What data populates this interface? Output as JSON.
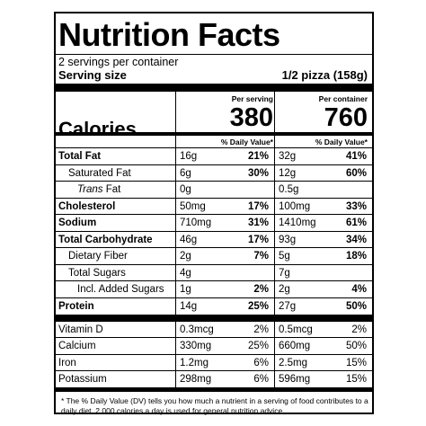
{
  "label": {
    "title": "Nutrition Facts",
    "servings_per_container": "2 servings per container",
    "serving_size_label": "Serving size",
    "serving_size_value": "1/2 pizza (158g)",
    "per_serving_label": "Per serving",
    "per_container_label": "Per container",
    "calories_label": "Calories",
    "calories_per_serving": "380",
    "calories_per_container": "760",
    "daily_value_header": "% Daily Value*",
    "nutrients": [
      {
        "name": "Total Fat",
        "serv_amt": "16g",
        "serv_dv": "21%",
        "cont_amt": "32g",
        "cont_dv": "41%"
      },
      {
        "name": "Saturated Fat",
        "serv_amt": "6g",
        "serv_dv": "30%",
        "cont_amt": "12g",
        "cont_dv": "60%"
      },
      {
        "name_italic": "Trans",
        "name_rest": " Fat",
        "serv_amt": "0g",
        "serv_dv": "",
        "cont_amt": "0.5g",
        "cont_dv": ""
      },
      {
        "name": "Cholesterol",
        "serv_amt": "50mg",
        "serv_dv": "17%",
        "cont_amt": "100mg",
        "cont_dv": "33%"
      },
      {
        "name": "Sodium",
        "serv_amt": "710mg",
        "serv_dv": "31%",
        "cont_amt": "1410mg",
        "cont_dv": "61%"
      },
      {
        "name": "Total Carbohydrate",
        "serv_amt": "46g",
        "serv_dv": "17%",
        "cont_amt": "93g",
        "cont_dv": "34%"
      },
      {
        "name": "Dietary Fiber",
        "serv_amt": "2g",
        "serv_dv": "7%",
        "cont_amt": "5g",
        "cont_dv": "18%"
      },
      {
        "name": "Total Sugars",
        "serv_amt": "4g",
        "serv_dv": "",
        "cont_amt": "7g",
        "cont_dv": ""
      },
      {
        "name": "Incl. Added Sugars",
        "serv_amt": "1g",
        "serv_dv": "2%",
        "cont_amt": "2g",
        "cont_dv": "4%"
      },
      {
        "name": "Protein",
        "serv_amt": "14g",
        "serv_dv": "25%",
        "cont_amt": "27g",
        "cont_dv": "50%"
      }
    ],
    "vitamins": [
      {
        "name": "Vitamin D",
        "serv_amt": "0.3mcg",
        "serv_dv": "2%",
        "cont_amt": "0.5mcg",
        "cont_dv": "2%"
      },
      {
        "name": "Calcium",
        "serv_amt": "330mg",
        "serv_dv": "25%",
        "cont_amt": "660mg",
        "cont_dv": "50%"
      },
      {
        "name": "Iron",
        "serv_amt": "1.2mg",
        "serv_dv": "6%",
        "cont_amt": "2.5mg",
        "cont_dv": "15%"
      },
      {
        "name": "Potassium",
        "serv_amt": "298mg",
        "serv_dv": "6%",
        "cont_amt": "596mg",
        "cont_dv": "15%"
      }
    ],
    "footnote": "* The % Daily Value (DV) tells you how much a nutrient in a serving of food contributes to a daily diet. 2,000 calories a day is used for general nutrition advice."
  }
}
